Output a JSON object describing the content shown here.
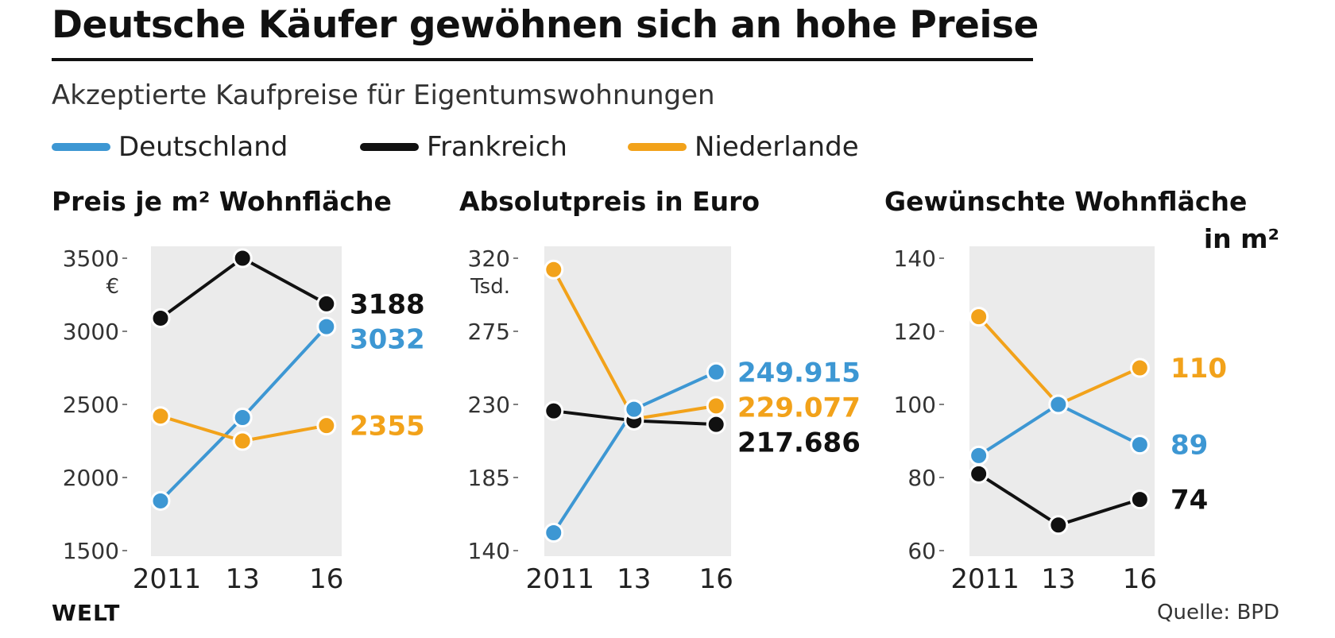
{
  "header": {
    "title": "Deutsche Käufer gewöhnen sich an hohe Preise",
    "subtitle": "Akzeptierte Kaufpreise für Eigentumswohnungen"
  },
  "legend": [
    {
      "label": "Deutschland",
      "color": "#3d97d3"
    },
    {
      "label": "Frankreich",
      "color": "#111111"
    },
    {
      "label": "Niederlande",
      "color": "#f2a21a"
    }
  ],
  "footer": {
    "brand": "WELT",
    "source": "Quelle: BPD"
  },
  "chart_data": [
    {
      "type": "line",
      "title": "Preis je m² Wohnfläche",
      "title2": "",
      "unit": "€",
      "categories": [
        "2011",
        "13",
        "16"
      ],
      "yticks": [
        {
          "v": 3500,
          "label": "3500"
        },
        {
          "v": 3000,
          "label": "3000"
        },
        {
          "v": 2500,
          "label": "2500"
        },
        {
          "v": 2000,
          "label": "2000"
        },
        {
          "v": 1500,
          "label": "1500"
        }
      ],
      "ylim": [
        1500,
        3500
      ],
      "series": [
        {
          "name": "Frankreich",
          "color": "#111111",
          "values": [
            3090,
            3500,
            3188
          ],
          "end_label": "3188"
        },
        {
          "name": "Deutschland",
          "color": "#3d97d3",
          "values": [
            1840,
            2410,
            3032
          ],
          "end_label": "3032"
        },
        {
          "name": "Niederlande",
          "color": "#f2a21a",
          "values": [
            2420,
            2250,
            2355
          ],
          "end_label": "2355"
        }
      ]
    },
    {
      "type": "line",
      "title": "Absolutpreis in Euro",
      "title2": "",
      "unit": "Tsd.",
      "categories": [
        "2011",
        "13",
        "16"
      ],
      "yticks": [
        {
          "v": 320,
          "label": "320"
        },
        {
          "v": 275,
          "label": "275"
        },
        {
          "v": 230,
          "label": "230"
        },
        {
          "v": 185,
          "label": "185"
        },
        {
          "v": 140,
          "label": "140"
        }
      ],
      "ylim": [
        140,
        320
      ],
      "series": [
        {
          "name": "Niederlande",
          "color": "#f2a21a",
          "values": [
            313,
            221,
            229.077
          ],
          "end_label": "229.077"
        },
        {
          "name": "Frankreich",
          "color": "#111111",
          "values": [
            226,
            220,
            217.686
          ],
          "end_label": "217.686"
        },
        {
          "name": "Deutschland",
          "color": "#3d97d3",
          "values": [
            151,
            227,
            249.915
          ],
          "end_label": "249.915"
        }
      ]
    },
    {
      "type": "line",
      "title": "Gewünschte Wohnfläche",
      "title2": "in m²",
      "unit": "",
      "categories": [
        "2011",
        "13",
        "16"
      ],
      "yticks": [
        {
          "v": 140,
          "label": "140"
        },
        {
          "v": 120,
          "label": "120"
        },
        {
          "v": 100,
          "label": "100"
        },
        {
          "v": 80,
          "label": "80"
        },
        {
          "v": 60,
          "label": "60"
        }
      ],
      "ylim": [
        60,
        140
      ],
      "series": [
        {
          "name": "Niederlande",
          "color": "#f2a21a",
          "values": [
            124,
            100,
            110
          ],
          "end_label": "110"
        },
        {
          "name": "Deutschland",
          "color": "#3d97d3",
          "values": [
            86,
            100,
            89
          ],
          "end_label": "89"
        },
        {
          "name": "Frankreich",
          "color": "#111111",
          "values": [
            81,
            67,
            74
          ],
          "end_label": "74"
        }
      ]
    }
  ]
}
